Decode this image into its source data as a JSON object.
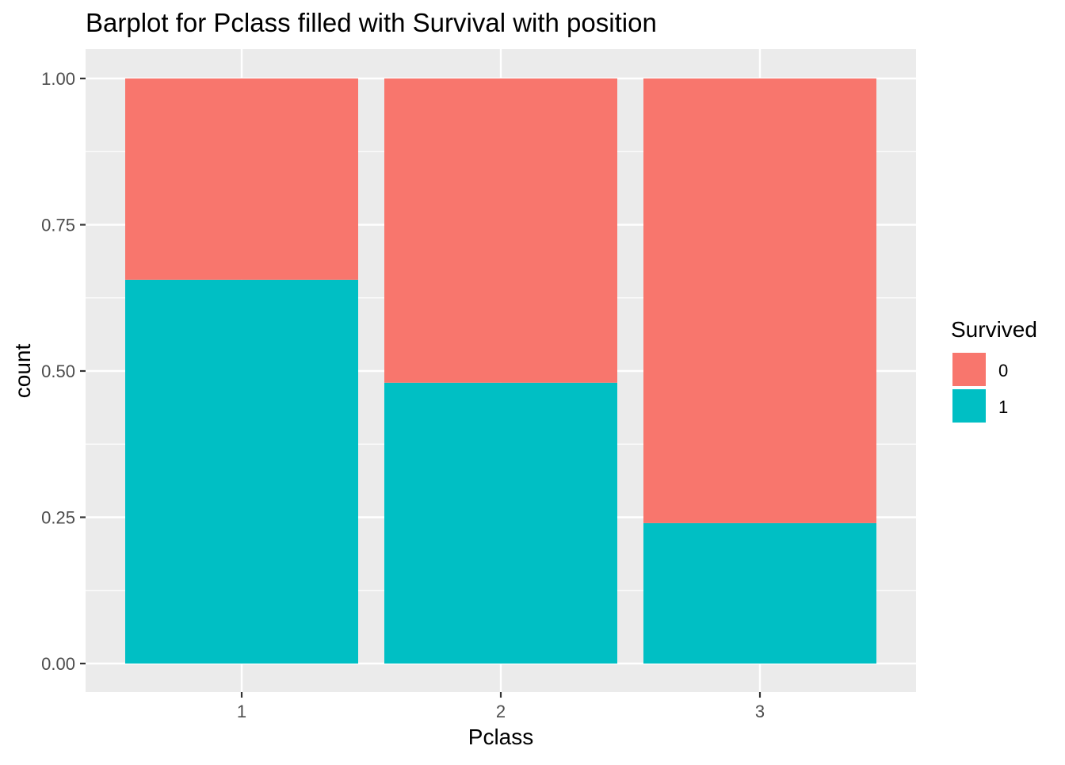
{
  "chart_data": {
    "type": "bar",
    "stacked": true,
    "position": "fill",
    "title": "Barplot for Pclass filled with Survival with position",
    "xlabel": "Pclass",
    "ylabel": "count",
    "categories": [
      "1",
      "2",
      "3"
    ],
    "ylim": [
      0,
      1
    ],
    "yticks": [
      "0.00",
      "0.25",
      "0.50",
      "0.75",
      "1.00"
    ],
    "grid": true,
    "legend": {
      "title": "Survived",
      "placement": "right",
      "entries": [
        "0",
        "1"
      ]
    },
    "series": [
      {
        "name": "0",
        "color": "#F8766D",
        "values": [
          0.344,
          0.52,
          0.76
        ]
      },
      {
        "name": "1",
        "color": "#00BFC4",
        "values": [
          0.656,
          0.48,
          0.24
        ]
      }
    ],
    "panel_background": "#EBEBEB",
    "grid_color": "#FFFFFF"
  }
}
